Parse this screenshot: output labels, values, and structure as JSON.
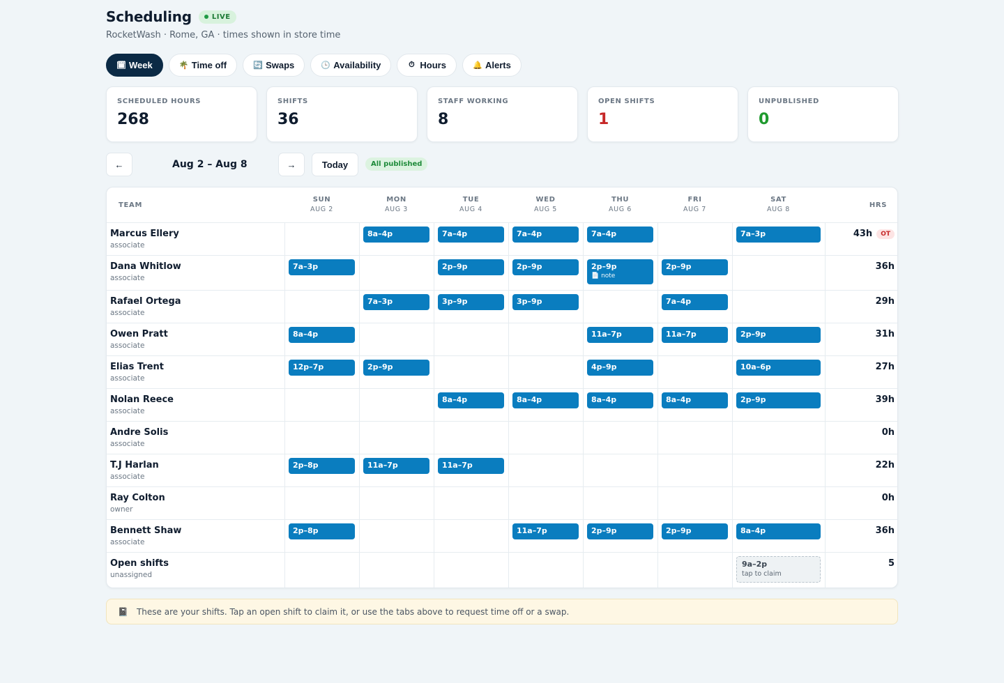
{
  "header": {
    "title": "Scheduling",
    "live_badge": "LIVE",
    "subtitle": "RocketWash · Rome, GA · times shown in store time"
  },
  "tabs": [
    {
      "label": "Week",
      "icon": "🗓",
      "icon_name": "calendar-icon",
      "active": true
    },
    {
      "label": "Time off",
      "icon": "🌴",
      "icon_name": "palm-tree-icon"
    },
    {
      "label": "Swaps",
      "icon": "🔄",
      "icon_name": "swap-icon"
    },
    {
      "label": "Availability",
      "icon": "🕒",
      "icon_name": "clock-icon"
    },
    {
      "label": "Hours",
      "icon": "⏱",
      "icon_name": "stopwatch-icon"
    },
    {
      "label": "Alerts",
      "icon": "🔔",
      "icon_name": "bell-icon"
    }
  ],
  "stats": [
    {
      "label": "SCHEDULED HOURS",
      "value": "268",
      "color": "#0f1c2e"
    },
    {
      "label": "SHIFTS",
      "value": "36",
      "color": "#0f1c2e"
    },
    {
      "label": "STAFF WORKING",
      "value": "8",
      "color": "#0f1c2e"
    },
    {
      "label": "OPEN SHIFTS",
      "value": "1",
      "color": "#c62828"
    },
    {
      "label": "UNPUBLISHED",
      "value": "0",
      "color": "#1f9a2e"
    }
  ],
  "week_nav": {
    "prev": "←",
    "range": "Aug 2 – Aug 8",
    "next": "→",
    "today": "Today",
    "status": "All published"
  },
  "grid": {
    "team_header": "TEAM",
    "hrs_header": "HRS",
    "days": [
      {
        "day": "SUN",
        "date": "AUG 2"
      },
      {
        "day": "MON",
        "date": "AUG 3"
      },
      {
        "day": "TUE",
        "date": "AUG 4"
      },
      {
        "day": "WED",
        "date": "AUG 5"
      },
      {
        "day": "THU",
        "date": "AUG 6"
      },
      {
        "day": "FRI",
        "date": "AUG 7"
      },
      {
        "day": "SAT",
        "date": "AUG 8"
      }
    ],
    "rows": [
      {
        "name": "Marcus Ellery",
        "role": "associate",
        "hours": "43h",
        "badge": "OT",
        "shifts": [
          "",
          "8a–4p",
          "7a–4p",
          "7a–4p",
          "7a–4p",
          "",
          "7a–3p"
        ]
      },
      {
        "name": "Dana Whitlow",
        "role": "associate",
        "hours": "36h",
        "shifts": [
          "7a–3p",
          "",
          "2p–9p",
          "2p–9p",
          {
            "time": "2p–9p",
            "note": "📄 note"
          },
          "2p–9p",
          ""
        ]
      },
      {
        "name": "Rafael Ortega",
        "role": "associate",
        "hours": "29h",
        "shifts": [
          "",
          "7a–3p",
          "3p–9p",
          "3p–9p",
          "",
          "7a–4p",
          ""
        ]
      },
      {
        "name": "Owen Pratt",
        "role": "associate",
        "hours": "31h",
        "shifts": [
          "8a–4p",
          "",
          "",
          "",
          "11a–7p",
          "11a–7p",
          "2p–9p"
        ]
      },
      {
        "name": "Elias Trent",
        "role": "associate",
        "hours": "27h",
        "shifts": [
          "12p–7p",
          "2p–9p",
          "",
          "",
          "4p–9p",
          "",
          "10a–6p"
        ]
      },
      {
        "name": "Nolan Reece",
        "role": "associate",
        "hours": "39h",
        "shifts": [
          "",
          "",
          "8a–4p",
          "8a–4p",
          "8a–4p",
          "8a–4p",
          "2p–9p"
        ]
      },
      {
        "name": "Andre Solis",
        "role": "associate",
        "hours": "0h",
        "shifts": [
          "",
          "",
          "",
          "",
          "",
          "",
          ""
        ]
      },
      {
        "name": "T.J Harlan",
        "role": "associate",
        "hours": "22h",
        "shifts": [
          "2p–8p",
          "11a–7p",
          "11a–7p",
          "",
          "",
          "",
          ""
        ]
      },
      {
        "name": "Ray Colton",
        "role": "owner",
        "hours": "0h",
        "shifts": [
          "",
          "",
          "",
          "",
          "",
          "",
          ""
        ]
      },
      {
        "name": "Bennett Shaw",
        "role": "associate",
        "hours": "36h",
        "shifts": [
          "2p–8p",
          "",
          "",
          "11a–7p",
          "2p–9p",
          "2p–9p",
          "8a–4p"
        ]
      },
      {
        "name": "Open shifts",
        "role": "unassigned",
        "hours": "5",
        "open": true,
        "shifts": [
          "",
          "",
          "",
          "",
          "",
          "",
          {
            "time": "9a–2p",
            "sub": "tap to claim"
          }
        ]
      }
    ]
  },
  "footer": {
    "icon": "📓",
    "text": "These are your shifts. Tap an open shift to claim it, or use the tabs above to request time off or a swap."
  }
}
